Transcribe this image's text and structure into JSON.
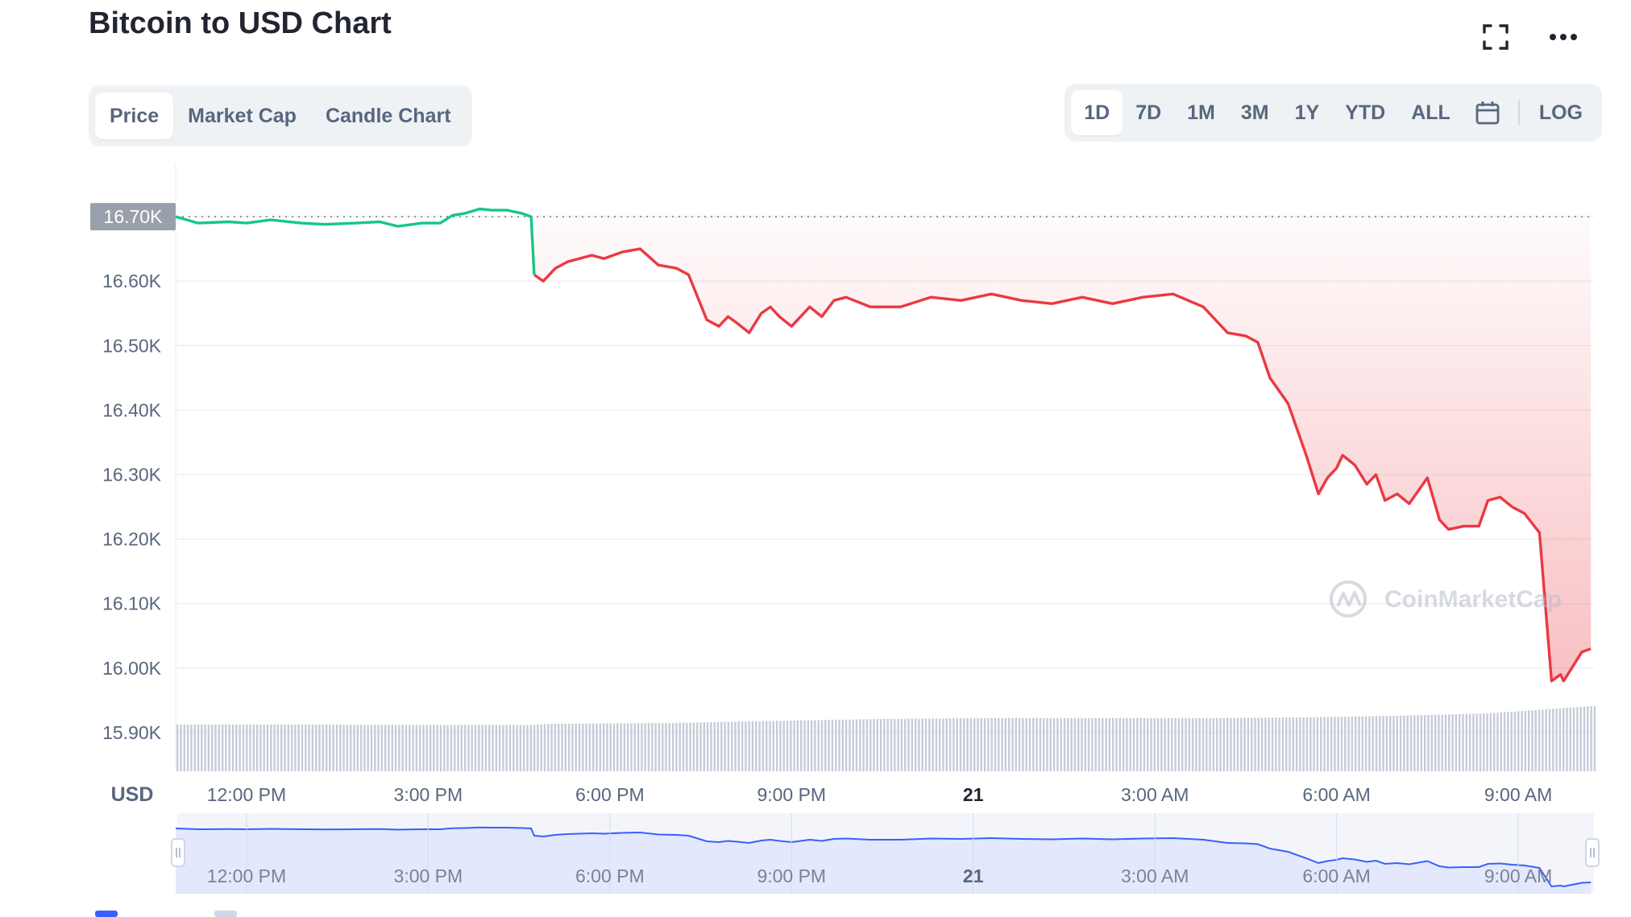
{
  "header": {
    "title": "Bitcoin to USD Chart"
  },
  "view_tabs": [
    {
      "label": "Price",
      "active": true
    },
    {
      "label": "Market Cap",
      "active": false
    },
    {
      "label": "Candle Chart",
      "active": false
    }
  ],
  "range_tabs": [
    {
      "label": "1D",
      "active": true
    },
    {
      "label": "7D",
      "active": false
    },
    {
      "label": "1M",
      "active": false
    },
    {
      "label": "3M",
      "active": false
    },
    {
      "label": "1Y",
      "active": false
    },
    {
      "label": "YTD",
      "active": false
    },
    {
      "label": "ALL",
      "active": false
    }
  ],
  "log_label": "LOG",
  "icons": {
    "fullscreen": "fullscreen-icon",
    "more": "more-icon",
    "calendar": "calendar-icon"
  },
  "colors": {
    "up": "#16c784",
    "down": "#ea3943",
    "navigator_line": "#3861fb",
    "navigator_fill": "#e3e8fd",
    "volume": "#c5cbd8",
    "price_badge": "#9aa0ab"
  },
  "chart_data": {
    "type": "line",
    "ylabel": "USD",
    "y_ticks": [
      "16.70K",
      "16.60K",
      "16.50K",
      "16.40K",
      "16.30K",
      "16.20K",
      "16.10K",
      "16.00K",
      "15.90K"
    ],
    "y_tick_values": [
      16700,
      16600,
      16500,
      16400,
      16300,
      16200,
      16100,
      16000,
      15900
    ],
    "x_ticks": [
      "12:00 PM",
      "3:00 PM",
      "6:00 PM",
      "9:00 PM",
      "21",
      "3:00 AM",
      "6:00 AM",
      "9:00 AM"
    ],
    "x_tick_hours": [
      12,
      15,
      18,
      21,
      24,
      27,
      30,
      33
    ],
    "bold_x_ticks": [
      "21"
    ],
    "reference_price": 16700,
    "reference_label": "16.70K",
    "ylim": [
      15840,
      16780
    ],
    "xlim": [
      10.83,
      34.25
    ],
    "watermark": "CoinMarketCap",
    "price_series": {
      "x": [
        10.83,
        11.2,
        11.7,
        12.0,
        12.4,
        12.9,
        13.3,
        13.8,
        14.2,
        14.5,
        14.9,
        15.2,
        15.4,
        15.6,
        15.85,
        16.05,
        16.3,
        16.55,
        16.7,
        16.75,
        16.9,
        17.1,
        17.3,
        17.7,
        17.9,
        18.2,
        18.5,
        18.8,
        19.1,
        19.3,
        19.6,
        19.8,
        19.95,
        20.1,
        20.3,
        20.5,
        20.65,
        20.8,
        21.0,
        21.3,
        21.5,
        21.7,
        21.9,
        22.3,
        22.8,
        23.3,
        23.8,
        24.3,
        24.8,
        25.3,
        25.8,
        26.3,
        26.8,
        27.3,
        27.8,
        28.2,
        28.5,
        28.7,
        28.9,
        29.2,
        29.5,
        29.7,
        29.85,
        30.0,
        30.1,
        30.3,
        30.5,
        30.65,
        30.8,
        31.0,
        31.2,
        31.5,
        31.7,
        31.85,
        32.1,
        32.35,
        32.5,
        32.7,
        32.9,
        33.1,
        33.35,
        33.55,
        33.7,
        33.75,
        33.95,
        34.05,
        34.2
      ],
      "y": [
        16700,
        16690,
        16692,
        16690,
        16695,
        16690,
        16688,
        16690,
        16692,
        16685,
        16690,
        16690,
        16702,
        16705,
        16712,
        16710,
        16710,
        16705,
        16700,
        16610,
        16600,
        16620,
        16630,
        16640,
        16635,
        16645,
        16650,
        16625,
        16620,
        16610,
        16540,
        16530,
        16545,
        16535,
        16520,
        16550,
        16560,
        16545,
        16530,
        16560,
        16545,
        16570,
        16575,
        16560,
        16560,
        16575,
        16570,
        16580,
        16570,
        16565,
        16575,
        16565,
        16575,
        16580,
        16560,
        16520,
        16515,
        16505,
        16450,
        16410,
        16330,
        16270,
        16295,
        16310,
        16330,
        16315,
        16285,
        16300,
        16260,
        16270,
        16255,
        16295,
        16230,
        16215,
        16220,
        16220,
        16260,
        16265,
        16250,
        16240,
        16210,
        15980,
        15990,
        15980,
        16010,
        16025,
        16030
      ],
      "up_until_x": 16.75
    },
    "volume_series": {
      "x": [
        10.83,
        13.0,
        15.0,
        16.7,
        17.0,
        19.0,
        21.0,
        22.5,
        24.0,
        26.0,
        28.0,
        29.5,
        31.0,
        32.5,
        34.2
      ],
      "values": [
        0.58,
        0.58,
        0.575,
        0.575,
        0.59,
        0.6,
        0.63,
        0.65,
        0.66,
        0.66,
        0.66,
        0.67,
        0.69,
        0.72,
        0.81
      ]
    },
    "navigator_x_ticks": [
      "12:00 PM",
      "3:00 PM",
      "6:00 PM",
      "9:00 PM",
      "21",
      "3:00 AM",
      "6:00 AM",
      "9:00 AM"
    ]
  }
}
